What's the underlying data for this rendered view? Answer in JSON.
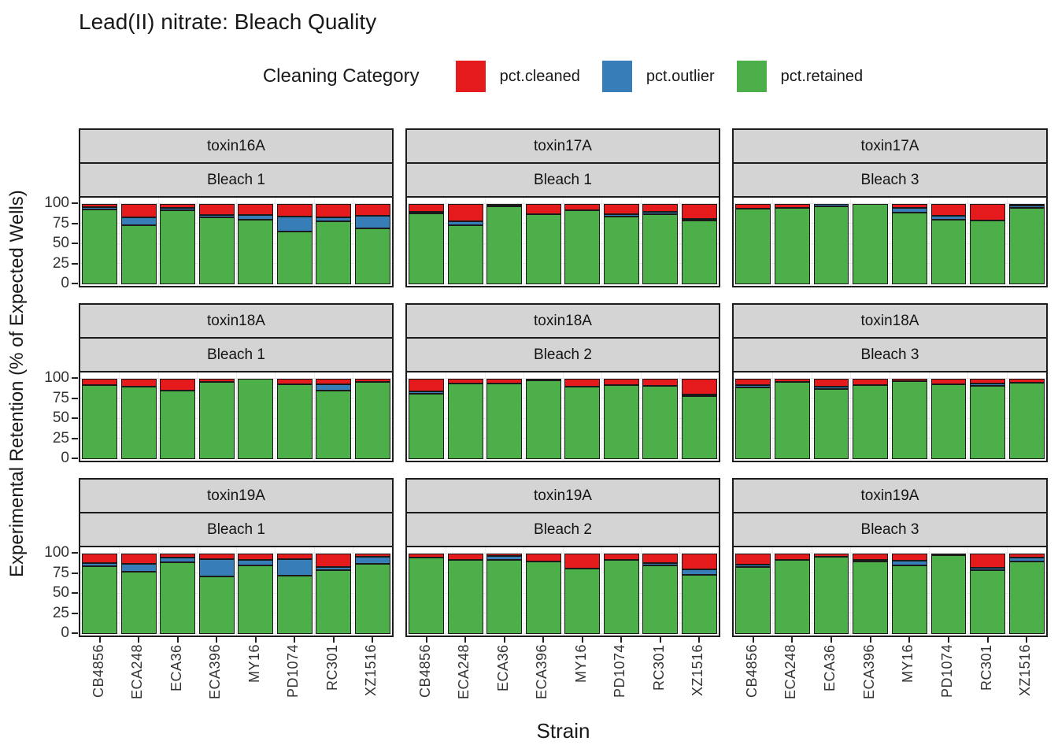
{
  "title": "Lead(II) nitrate: Bleach Quality",
  "legend": {
    "title": "Cleaning Category",
    "entries": [
      {
        "label": "pct.cleaned",
        "color": "#E41A1C"
      },
      {
        "label": "pct.outlier",
        "color": "#377EB8"
      },
      {
        "label": "pct.retained",
        "color": "#4DAF4A"
      }
    ]
  },
  "axes": {
    "x_title": "Strain",
    "y_title": "Experimental Retention (% of Expected Wells)",
    "y_ticks": [
      100,
      75,
      50,
      25,
      0
    ],
    "y_range": [
      0,
      100
    ]
  },
  "chart_data": {
    "type": "bar",
    "stacked": true,
    "grid": true,
    "ylim": [
      0,
      100
    ],
    "categories": [
      "CB4856",
      "ECA248",
      "ECA36",
      "ECA396",
      "MY16",
      "PD1074",
      "RC301",
      "XZ1516"
    ],
    "stack_order_bottom_to_top": [
      "pct.retained",
      "pct.outlier",
      "pct.cleaned"
    ],
    "colors": {
      "pct.cleaned": "#E41A1C",
      "pct.outlier": "#377EB8",
      "pct.retained": "#4DAF4A"
    },
    "facet_rows": [
      "toxin16A | toxin17A | toxin17A",
      "toxin18A",
      "toxin19A"
    ],
    "facets": [
      {
        "row_label": "toxin16A",
        "col_label": "Bleach 1",
        "values": {
          "pct.retained": [
            93,
            74,
            92,
            83,
            80,
            66,
            78,
            70
          ],
          "pct.outlier": [
            3,
            9,
            3,
            3,
            6,
            18,
            5,
            15
          ],
          "pct.cleaned": [
            4,
            17,
            5,
            14,
            14,
            16,
            17,
            15
          ]
        }
      },
      {
        "row_label": "toxin17A",
        "col_label": "Bleach 1",
        "values": {
          "pct.retained": [
            88,
            74,
            97,
            87,
            92,
            84,
            87,
            79
          ],
          "pct.outlier": [
            2,
            4,
            1,
            0,
            0,
            3,
            3,
            2
          ],
          "pct.cleaned": [
            10,
            22,
            2,
            13,
            8,
            13,
            10,
            19
          ]
        }
      },
      {
        "row_label": "toxin17A",
        "col_label": "Bleach 3",
        "values": {
          "pct.retained": [
            94,
            95,
            97,
            100,
            89,
            80,
            79,
            95
          ],
          "pct.outlier": [
            0,
            0,
            3,
            0,
            6,
            5,
            0,
            3
          ],
          "pct.cleaned": [
            6,
            5,
            0,
            0,
            5,
            15,
            21,
            2
          ]
        }
      },
      {
        "row_label": "toxin18A",
        "col_label": "Bleach 1",
        "values": {
          "pct.retained": [
            92,
            90,
            85,
            96,
            100,
            93,
            85,
            96
          ],
          "pct.outlier": [
            0,
            0,
            0,
            0,
            0,
            0,
            8,
            0
          ],
          "pct.cleaned": [
            8,
            10,
            15,
            4,
            0,
            7,
            7,
            4
          ]
        }
      },
      {
        "row_label": "toxin18A",
        "col_label": "Bleach 2",
        "values": {
          "pct.retained": [
            81,
            94,
            94,
            98,
            90,
            92,
            91,
            78
          ],
          "pct.outlier": [
            3,
            0,
            0,
            0,
            0,
            0,
            0,
            2
          ],
          "pct.cleaned": [
            16,
            6,
            6,
            2,
            10,
            8,
            9,
            20
          ]
        }
      },
      {
        "row_label": "toxin18A",
        "col_label": "Bleach 3",
        "values": {
          "pct.retained": [
            89,
            96,
            87,
            92,
            97,
            93,
            91,
            95
          ],
          "pct.outlier": [
            3,
            0,
            3,
            0,
            0,
            0,
            3,
            0
          ],
          "pct.cleaned": [
            8,
            4,
            10,
            8,
            3,
            7,
            6,
            5
          ]
        }
      },
      {
        "row_label": "toxin19A",
        "col_label": "Bleach 1",
        "values": {
          "pct.retained": [
            84,
            77,
            89,
            72,
            85,
            73,
            79,
            87
          ],
          "pct.outlier": [
            4,
            10,
            6,
            21,
            7,
            20,
            4,
            9
          ],
          "pct.cleaned": [
            12,
            13,
            5,
            7,
            8,
            7,
            17,
            4
          ]
        }
      },
      {
        "row_label": "toxin19A",
        "col_label": "Bleach 2",
        "values": {
          "pct.retained": [
            95,
            92,
            92,
            90,
            81,
            92,
            85,
            74
          ],
          "pct.outlier": [
            0,
            0,
            5,
            0,
            0,
            0,
            3,
            6
          ],
          "pct.cleaned": [
            5,
            8,
            3,
            10,
            19,
            8,
            12,
            20
          ]
        }
      },
      {
        "row_label": "toxin19A",
        "col_label": "Bleach 3",
        "values": {
          "pct.retained": [
            83,
            92,
            96,
            90,
            85,
            98,
            79,
            90
          ],
          "pct.outlier": [
            3,
            0,
            0,
            2,
            6,
            0,
            3,
            5
          ],
          "pct.cleaned": [
            14,
            8,
            4,
            8,
            9,
            2,
            18,
            5
          ]
        }
      }
    ]
  }
}
